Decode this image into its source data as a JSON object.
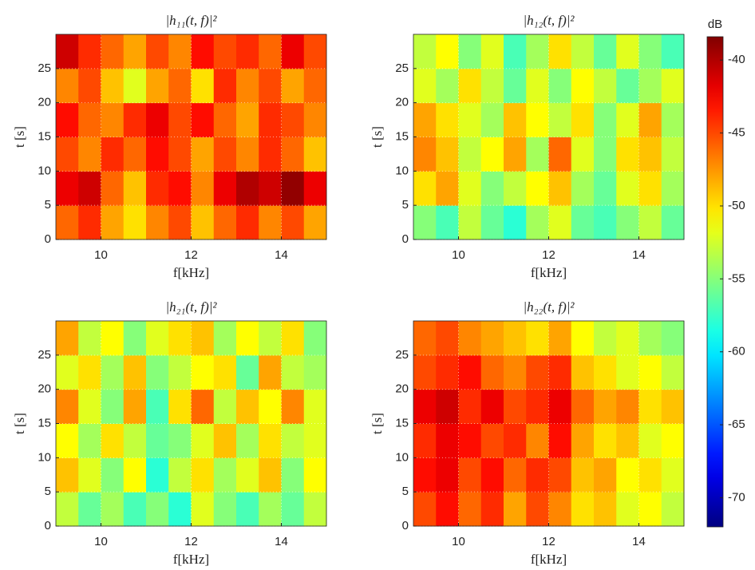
{
  "chart_data": [
    {
      "type": "heatmap",
      "title": "|h₁₁(t, f)|²",
      "xlabel": "f[kHz]",
      "ylabel": "t [s]",
      "xlim": [
        9,
        15
      ],
      "xticks": [
        10,
        12,
        14
      ],
      "ylim": [
        0,
        30
      ],
      "yticks": [
        0,
        5,
        10,
        15,
        20,
        25
      ],
      "grid": true,
      "x": [
        9.25,
        9.75,
        10.25,
        10.75,
        11.25,
        11.75,
        12.25,
        12.75,
        13.25,
        13.75,
        14.25,
        14.75
      ],
      "y": [
        2.5,
        7.5,
        12.5,
        17.5,
        22.5,
        27.5
      ],
      "values": [
        [
          -46,
          -44,
          -48,
          -50,
          -47,
          -45,
          -49,
          -46,
          -44,
          -47,
          -45,
          -48
        ],
        [
          -42,
          -41,
          -46,
          -49,
          -44,
          -43,
          -47,
          -42,
          -40,
          -41,
          -39,
          -42
        ],
        [
          -45,
          -47,
          -44,
          -46,
          -43,
          -45,
          -48,
          -45,
          -47,
          -44,
          -46,
          -49
        ],
        [
          -43,
          -46,
          -47,
          -44,
          -42,
          -45,
          -43,
          -46,
          -48,
          -44,
          -45,
          -47
        ],
        [
          -47,
          -45,
          -49,
          -52,
          -48,
          -46,
          -50,
          -44,
          -47,
          -45,
          -48,
          -46
        ],
        [
          -41,
          -44,
          -46,
          -48,
          -45,
          -47,
          -43,
          -45,
          -44,
          -46,
          -42,
          -45
        ]
      ]
    },
    {
      "type": "heatmap",
      "title": "|h₁₂(t, f)|²",
      "xlabel": "f[kHz]",
      "ylabel": "t [s]",
      "xlim": [
        9,
        15
      ],
      "xticks": [
        10,
        12,
        14
      ],
      "ylim": [
        0,
        30
      ],
      "yticks": [
        0,
        5,
        10,
        15,
        20,
        25
      ],
      "grid": true,
      "x": [
        9.25,
        9.75,
        10.25,
        10.75,
        11.25,
        11.75,
        12.25,
        12.75,
        13.25,
        13.75,
        14.25,
        14.75
      ],
      "y": [
        2.5,
        7.5,
        12.5,
        17.5,
        22.5,
        27.5
      ],
      "values": [
        [
          -55,
          -57,
          -53,
          -56,
          -58,
          -54,
          -52,
          -56,
          -57,
          -55,
          -53,
          -56
        ],
        [
          -50,
          -48,
          -52,
          -55,
          -53,
          -51,
          -49,
          -54,
          -56,
          -52,
          -50,
          -54
        ],
        [
          -47,
          -49,
          -53,
          -51,
          -48,
          -54,
          -46,
          -52,
          -55,
          -50,
          -49,
          -53
        ],
        [
          -48,
          -50,
          -52,
          -54,
          -49,
          -51,
          -53,
          -50,
          -55,
          -52,
          -48,
          -54
        ],
        [
          -52,
          -54,
          -50,
          -53,
          -56,
          -52,
          -55,
          -51,
          -53,
          -56,
          -54,
          -52
        ],
        [
          -53,
          -51,
          -55,
          -52,
          -57,
          -54,
          -50,
          -53,
          -56,
          -52,
          -55,
          -57
        ]
      ]
    },
    {
      "type": "heatmap",
      "title": "|h₂₁(t, f)|²",
      "xlabel": "f[kHz]",
      "ylabel": "t [s]",
      "xlim": [
        9,
        15
      ],
      "xticks": [
        10,
        12,
        14
      ],
      "ylim": [
        0,
        30
      ],
      "yticks": [
        0,
        5,
        10,
        15,
        20,
        25
      ],
      "grid": true,
      "x": [
        9.25,
        9.75,
        10.25,
        10.75,
        11.25,
        11.75,
        12.25,
        12.75,
        13.25,
        13.75,
        14.25,
        14.75
      ],
      "y": [
        2.5,
        7.5,
        12.5,
        17.5,
        22.5,
        27.5
      ],
      "values": [
        [
          -53,
          -56,
          -54,
          -57,
          -55,
          -58,
          -52,
          -55,
          -57,
          -54,
          -56,
          -53
        ],
        [
          -49,
          -52,
          -55,
          -51,
          -58,
          -53,
          -50,
          -54,
          -52,
          -49,
          -55,
          -51
        ],
        [
          -51,
          -54,
          -50,
          -53,
          -56,
          -55,
          -52,
          -49,
          -54,
          -50,
          -53,
          -52
        ],
        [
          -47,
          -52,
          -55,
          -48,
          -57,
          -50,
          -46,
          -53,
          -49,
          -51,
          -47,
          -52
        ],
        [
          -52,
          -50,
          -54,
          -49,
          -55,
          -53,
          -51,
          -50,
          -56,
          -48,
          -53,
          -54
        ],
        [
          -48,
          -53,
          -51,
          -55,
          -52,
          -50,
          -49,
          -54,
          -51,
          -53,
          -50,
          -55
        ]
      ]
    },
    {
      "type": "heatmap",
      "title": "|h₂₂(t, f)|²",
      "xlabel": "f[kHz]",
      "ylabel": "t [s]",
      "xlim": [
        9,
        15
      ],
      "xticks": [
        10,
        12,
        14
      ],
      "ylim": [
        0,
        30
      ],
      "yticks": [
        0,
        5,
        10,
        15,
        20,
        25
      ],
      "grid": true,
      "x": [
        9.25,
        9.75,
        10.25,
        10.75,
        11.25,
        11.75,
        12.25,
        12.75,
        13.25,
        13.75,
        14.25,
        14.75
      ],
      "y": [
        2.5,
        7.5,
        12.5,
        17.5,
        22.5,
        27.5
      ],
      "values": [
        [
          -45,
          -43,
          -46,
          -44,
          -48,
          -45,
          -47,
          -50,
          -49,
          -52,
          -51,
          -53
        ],
        [
          -43,
          -42,
          -45,
          -43,
          -46,
          -44,
          -45,
          -49,
          -48,
          -51,
          -50,
          -52
        ],
        [
          -44,
          -42,
          -43,
          -45,
          -44,
          -47,
          -43,
          -48,
          -50,
          -49,
          -52,
          -51
        ],
        [
          -42,
          -41,
          -44,
          -42,
          -45,
          -44,
          -42,
          -46,
          -48,
          -47,
          -50,
          -49
        ],
        [
          -45,
          -44,
          -43,
          -46,
          -47,
          -45,
          -44,
          -49,
          -50,
          -52,
          -51,
          -53
        ],
        [
          -46,
          -45,
          -47,
          -48,
          -49,
          -50,
          -48,
          -51,
          -53,
          -52,
          -54,
          -55
        ]
      ]
    }
  ],
  "colorbar": {
    "label": "dB",
    "colormap": "jet",
    "clim": [
      -72,
      -38.4
    ],
    "ticks": [
      -40,
      -45,
      -50,
      -55,
      -60,
      -65,
      -70
    ]
  }
}
